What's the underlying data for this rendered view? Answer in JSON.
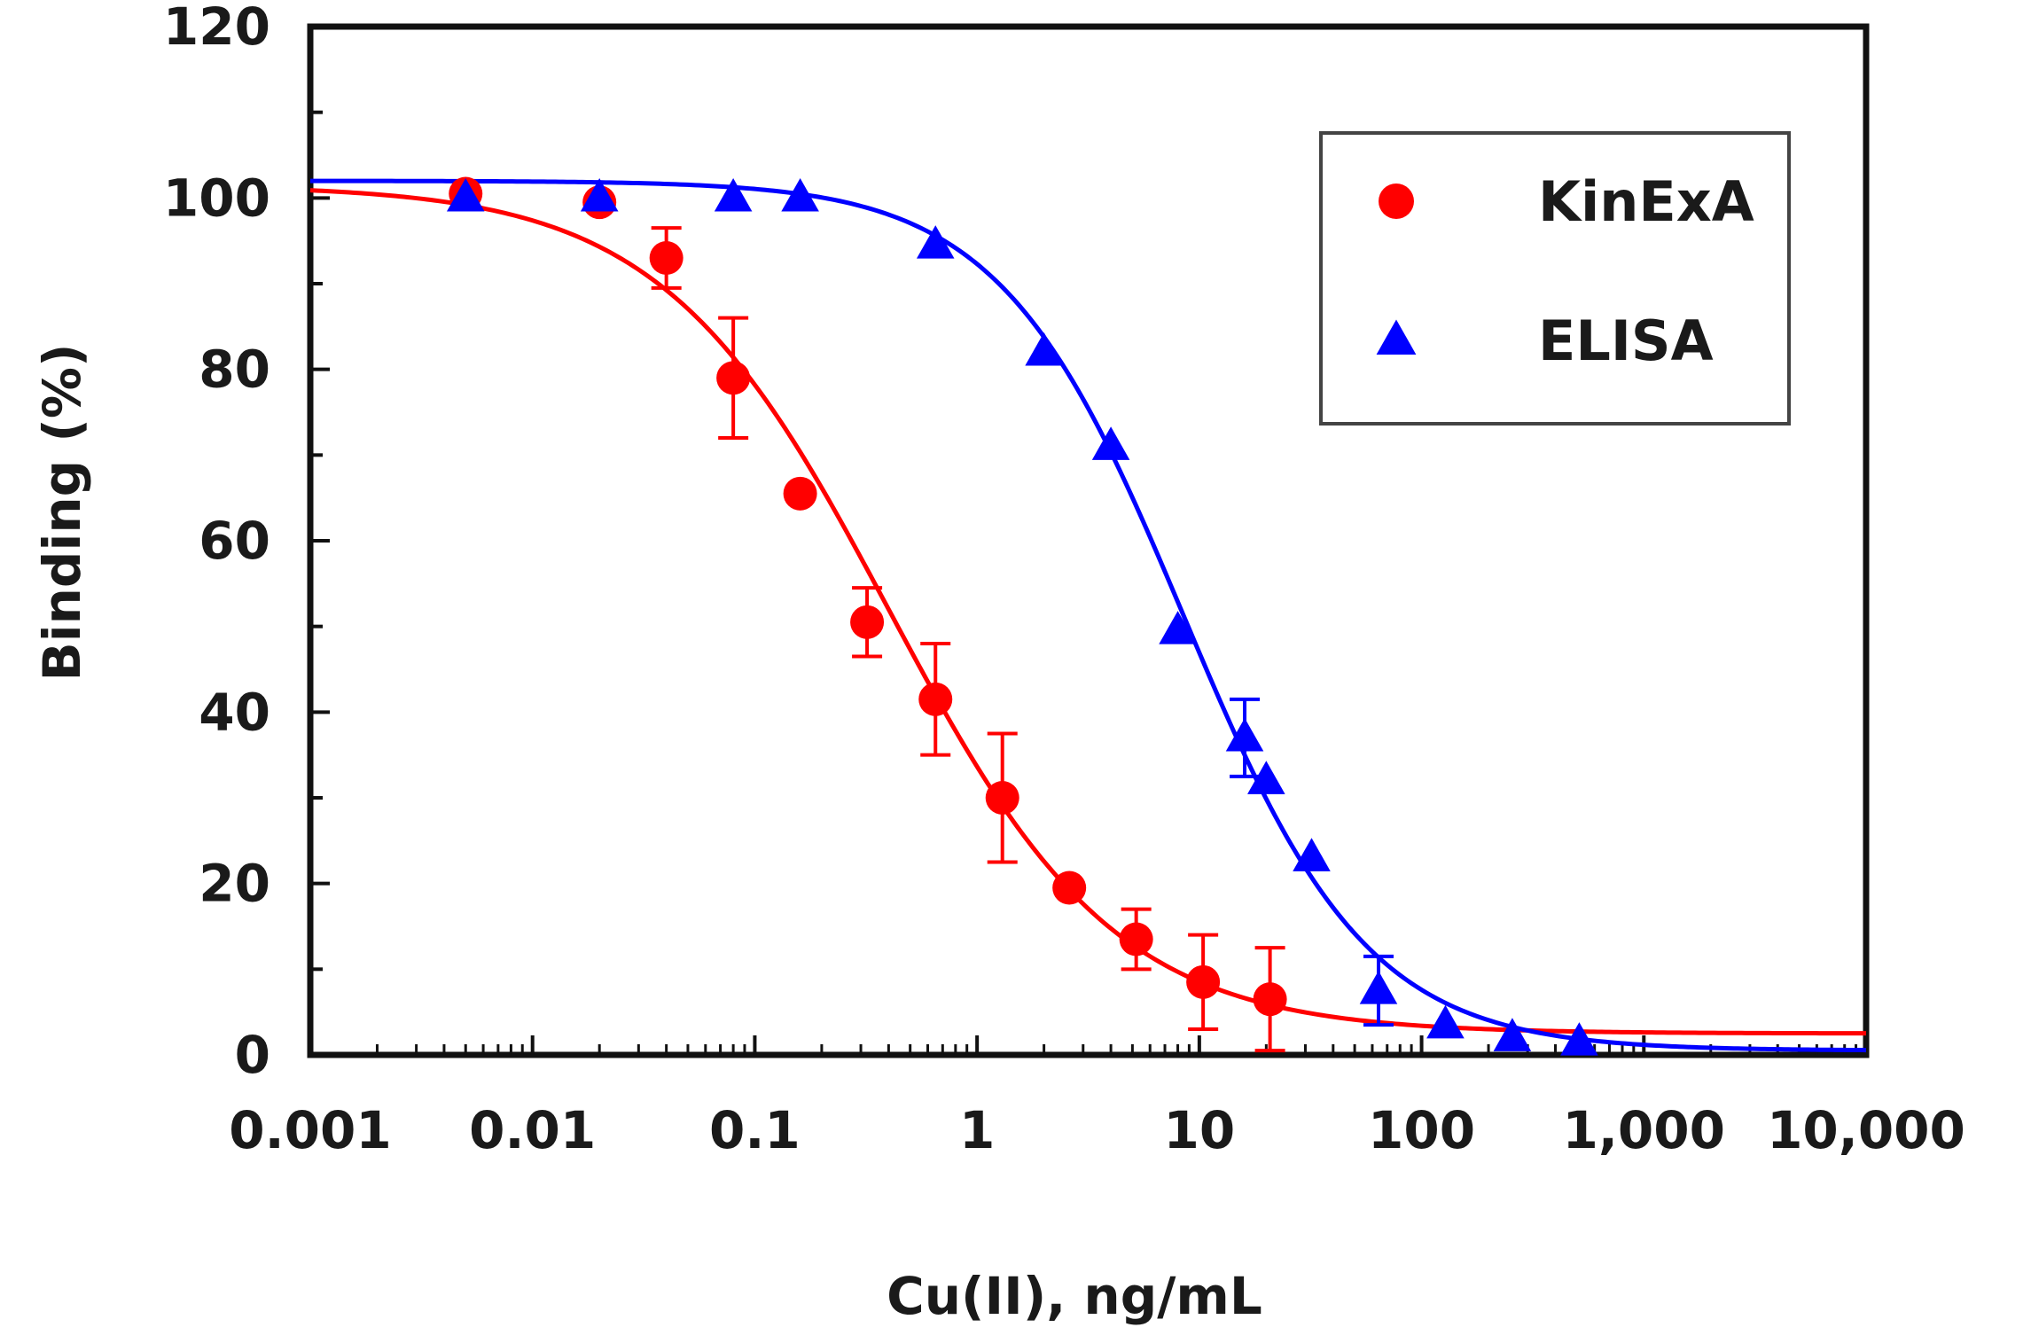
{
  "chart_data": {
    "type": "scatter",
    "title": "",
    "xlabel": "Cu(II), ng/mL",
    "ylabel": "Binding (%)",
    "xscale": "log",
    "xlim": [
      0.001,
      10000
    ],
    "ylim": [
      0,
      120
    ],
    "x_tick_values": [
      0.001,
      0.01,
      0.1,
      1,
      10,
      100,
      1000,
      10000
    ],
    "x_tick_labels": [
      "0.001",
      "0.01",
      "0.1",
      "1",
      "10",
      "100",
      "1,000",
      "10,000"
    ],
    "y_tick_values": [
      0,
      20,
      40,
      60,
      80,
      100,
      120
    ],
    "y_tick_labels": [
      "0",
      "20",
      "40",
      "60",
      "80",
      "100",
      "120"
    ],
    "legend_position": "top-right",
    "grid": false,
    "series": [
      {
        "name": "KinExA",
        "marker": "circle",
        "color": "#ff0000",
        "points": [
          {
            "x": 0.005,
            "y": 100.5,
            "err": 0
          },
          {
            "x": 0.02,
            "y": 99.5,
            "err": 0
          },
          {
            "x": 0.04,
            "y": 93,
            "err": 3.5
          },
          {
            "x": 0.08,
            "y": 79,
            "err": 7
          },
          {
            "x": 0.16,
            "y": 65.5,
            "err": 0
          },
          {
            "x": 0.32,
            "y": 50.5,
            "err": 4
          },
          {
            "x": 0.65,
            "y": 41.5,
            "err": 6.5
          },
          {
            "x": 1.3,
            "y": 30,
            "err": 7.5
          },
          {
            "x": 2.6,
            "y": 19.5,
            "err": 0
          },
          {
            "x": 5.2,
            "y": 13.5,
            "err": 3.5
          },
          {
            "x": 10.4,
            "y": 8.5,
            "err": 5.5
          },
          {
            "x": 20.8,
            "y": 6.5,
            "err": 6
          }
        ],
        "fit": {
          "top": 101.5,
          "bottom": 2.5,
          "ic50": 0.4,
          "hill": 0.85
        }
      },
      {
        "name": "ELISA",
        "marker": "triangle",
        "color": "#0000ff",
        "points": [
          {
            "x": 0.005,
            "y": 100,
            "err": 0
          },
          {
            "x": 0.02,
            "y": 100,
            "err": 0
          },
          {
            "x": 0.08,
            "y": 100,
            "err": 0
          },
          {
            "x": 0.16,
            "y": 100,
            "err": 0
          },
          {
            "x": 0.65,
            "y": 94.5,
            "err": 0
          },
          {
            "x": 2,
            "y": 82,
            "err": 0
          },
          {
            "x": 4,
            "y": 71,
            "err": 0
          },
          {
            "x": 8,
            "y": 49.5,
            "err": 0
          },
          {
            "x": 16,
            "y": 37,
            "err": 4.5
          },
          {
            "x": 20,
            "y": 32,
            "err": 0
          },
          {
            "x": 32,
            "y": 23,
            "err": 0
          },
          {
            "x": 64,
            "y": 7.5,
            "err": 4
          },
          {
            "x": 128,
            "y": 3.5,
            "err": 0
          },
          {
            "x": 256,
            "y": 2,
            "err": 0
          },
          {
            "x": 512,
            "y": 1.5,
            "err": 0
          }
        ],
        "fit": {
          "top": 102,
          "bottom": 0.5,
          "ic50": 8.5,
          "hill": 1.05
        }
      }
    ]
  }
}
